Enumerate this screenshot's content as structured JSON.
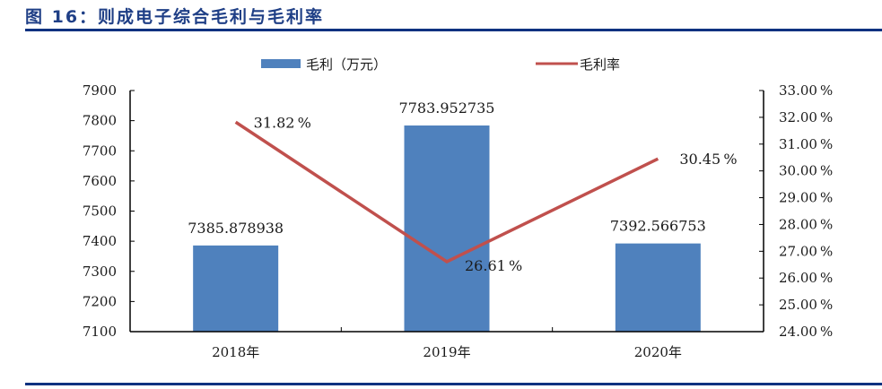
{
  "figure": {
    "title": "图 16：则成电子综合毛利与毛利率"
  },
  "legend": {
    "bar_label": "毛利（万元）",
    "line_label": "毛利率"
  },
  "colors": {
    "bar": "#4f81bd",
    "line": "#c0504d",
    "title": "#1f3f86",
    "rule": "#0e3280"
  },
  "axes": {
    "left_ticks": [
      "7900",
      "7800",
      "7700",
      "7600",
      "7500",
      "7400",
      "7300",
      "7200",
      "7100"
    ],
    "right_ticks": [
      "33.00%",
      "32.00%",
      "31.00%",
      "30.00%",
      "29.00%",
      "28.00%",
      "27.00%",
      "26.00%",
      "25.00%",
      "24.00%"
    ],
    "categories": [
      "2018年",
      "2019年",
      "2020年"
    ]
  },
  "labels": {
    "bar_values": [
      "7385.878938",
      "7783.952735",
      "7392.566753"
    ],
    "line_values": [
      "31.82%",
      "26.61%",
      "30.45%"
    ]
  },
  "chart_data": {
    "type": "bar",
    "title": "图 16：则成电子综合毛利与毛利率",
    "categories": [
      "2018年",
      "2019年",
      "2020年"
    ],
    "series": [
      {
        "name": "毛利（万元）",
        "type": "bar",
        "axis": "left",
        "values": [
          7385.878938,
          7783.952735,
          7392.566753
        ]
      },
      {
        "name": "毛利率",
        "type": "line",
        "axis": "right",
        "values": [
          31.82,
          26.61,
          30.45
        ],
        "unit": "%"
      }
    ],
    "xlabel": "",
    "ylabel": "",
    "ylim": [
      7100,
      7900
    ],
    "y2lim": [
      24.0,
      33.0
    ],
    "grid": false,
    "legend_position": "top"
  }
}
